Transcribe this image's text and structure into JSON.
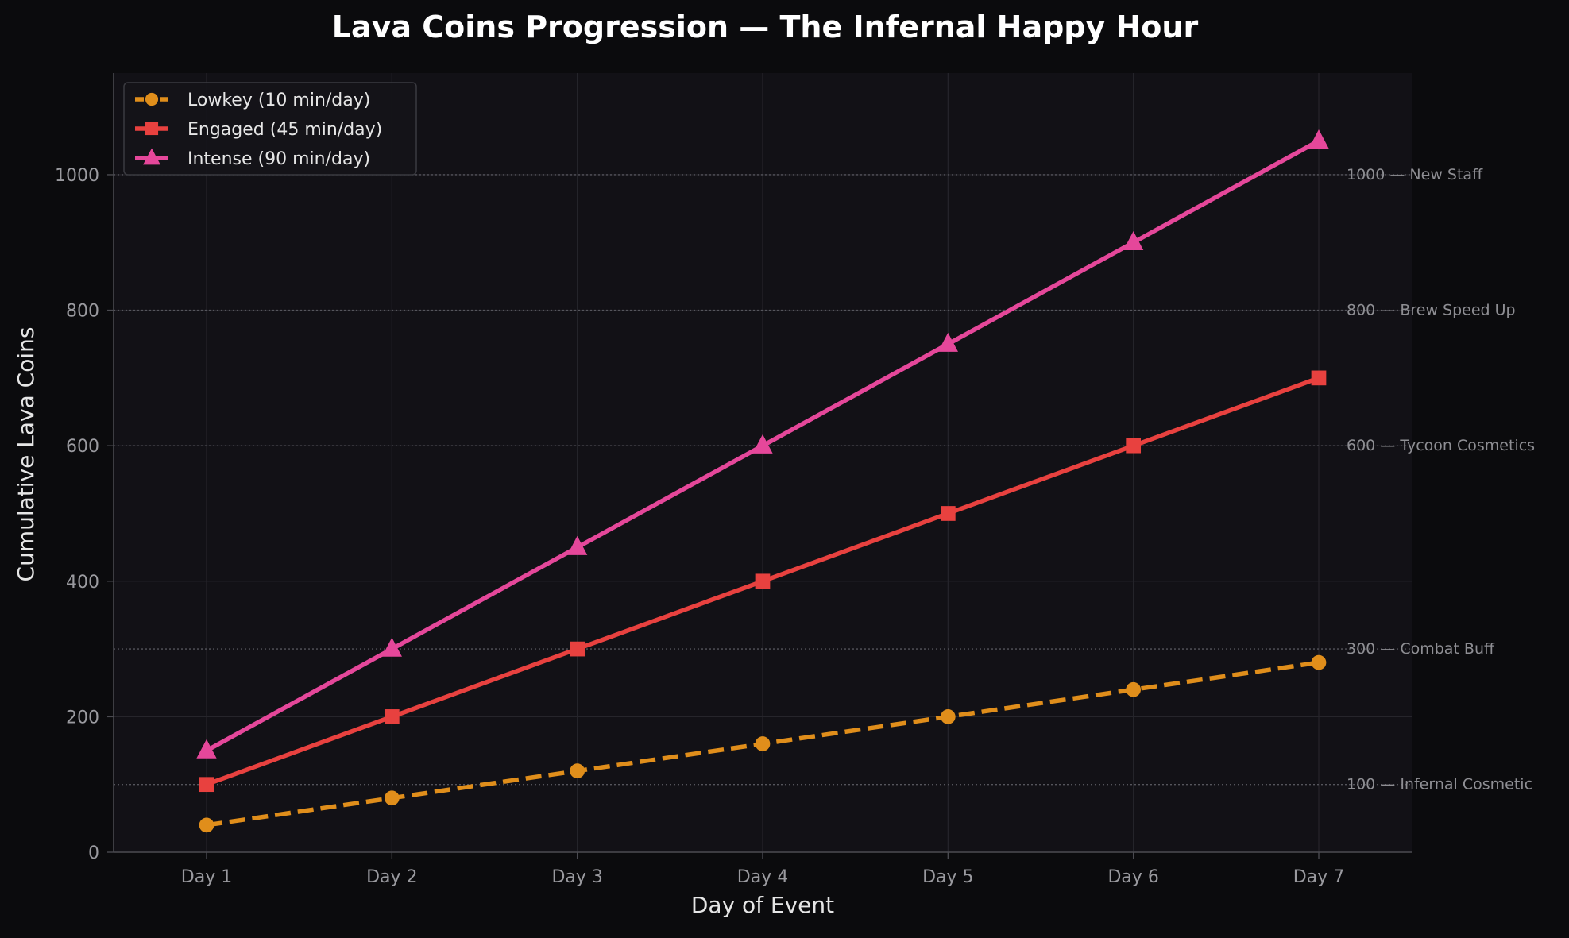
{
  "chart_data": {
    "type": "line",
    "title": "Lava Coins Progression — The Infernal Happy Hour",
    "xlabel": "Day of Event",
    "ylabel": "Cumulative Lava Coins",
    "categories": [
      "Day 1",
      "Day 2",
      "Day 3",
      "Day 4",
      "Day 5",
      "Day 6",
      "Day 7"
    ],
    "ylim": [
      0,
      1150
    ],
    "yticks": [
      "0",
      "200",
      "400",
      "600",
      "800",
      "1000"
    ],
    "grid": true,
    "legend_position": "top-left",
    "series": [
      {
        "name": "Lowkey (10 min/day)",
        "values": [
          40,
          80,
          120,
          160,
          200,
          240,
          280
        ],
        "color": "#e08e1b",
        "marker": "circle",
        "linestyle": "dashed"
      },
      {
        "name": "Engaged (45 min/day)",
        "values": [
          100,
          200,
          300,
          400,
          500,
          600,
          700
        ],
        "color": "#e8413f",
        "marker": "square",
        "linestyle": "solid"
      },
      {
        "name": "Intense (90 min/day)",
        "values": [
          150,
          300,
          450,
          600,
          750,
          900,
          1050
        ],
        "color": "#e5479a",
        "marker": "triangle",
        "linestyle": "solid"
      }
    ],
    "milestones": [
      {
        "value": 1000,
        "label": "1000 — New Staff"
      },
      {
        "value": 800,
        "label": "800 — Brew Speed Up"
      },
      {
        "value": 600,
        "label": "600 — Tycoon Cosmetics"
      },
      {
        "value": 300,
        "label": "300 — Combat Buff"
      },
      {
        "value": 100,
        "label": "100 — Infernal Cosmetic"
      }
    ],
    "colors": {
      "figure_background": "#0b0b0d",
      "plot_background": "#121116",
      "grid": "#26252b",
      "milestone_line": "#55555c",
      "axis": "#4a4a50",
      "tick_text": "#9a9a9f",
      "label_text": "#e6e6e6",
      "title_text": "#ffffff",
      "milestone_text": "#8e8e93"
    }
  }
}
